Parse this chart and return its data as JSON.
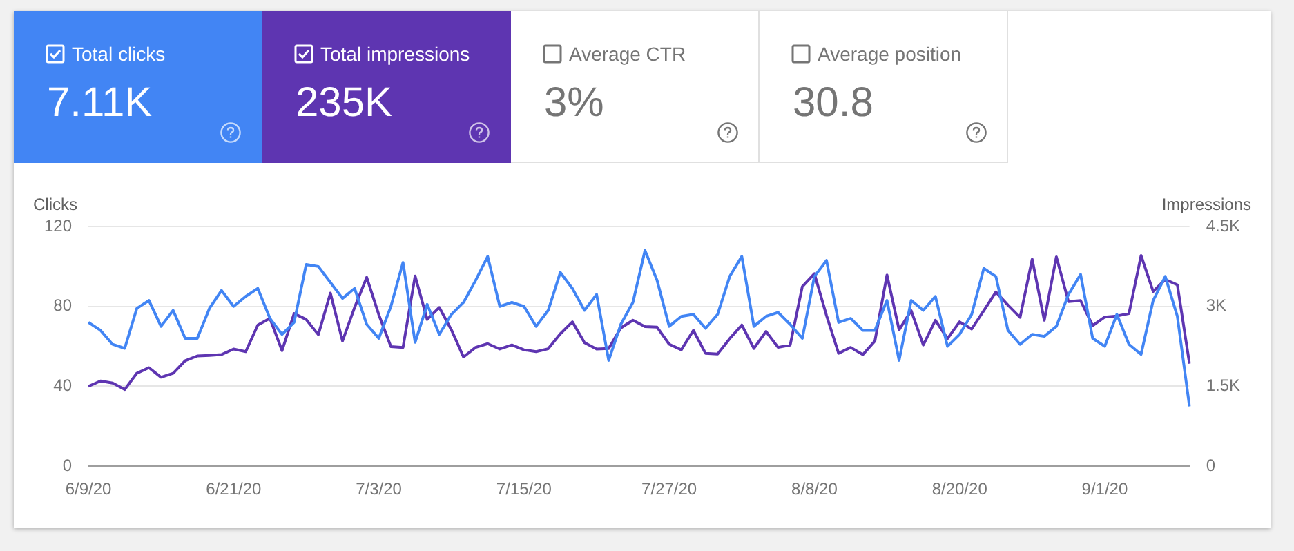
{
  "chart_data": [
    {
      "type": "other",
      "title": "Total clicks",
      "annotations": [
        "7.11K"
      ],
      "color": "#4285f4"
    },
    {
      "type": "other",
      "title": "Total impressions",
      "annotations": [
        "235K"
      ],
      "color": "#5e35b1"
    },
    {
      "type": "other",
      "title": "Average CTR",
      "annotations": [
        "3%"
      ]
    },
    {
      "type": "other",
      "title": "Average position",
      "annotations": [
        "30.8"
      ]
    },
    {
      "type": "line",
      "ylabel": "Clicks",
      "y2label": "Impressions",
      "categories": [
        "6/9/20",
        null,
        null,
        null,
        null,
        null,
        null,
        null,
        null,
        null,
        null,
        null,
        "6/21/20",
        null,
        null,
        null,
        null,
        null,
        null,
        null,
        null,
        null,
        null,
        null,
        "7/3/20",
        null,
        null,
        null,
        null,
        null,
        null,
        null,
        null,
        null,
        null,
        null,
        "7/15/20",
        null,
        null,
        null,
        null,
        null,
        null,
        null,
        null,
        null,
        null,
        null,
        "7/27/20",
        null,
        null,
        null,
        null,
        null,
        null,
        null,
        null,
        null,
        null,
        null,
        "8/8/20",
        null,
        null,
        null,
        null,
        null,
        null,
        null,
        null,
        null,
        null,
        null,
        "8/20/20",
        null,
        null,
        null,
        null,
        null,
        null,
        null,
        null,
        null,
        null,
        null,
        "9/1/20",
        null,
        null,
        null,
        null,
        null,
        null,
        null
      ],
      "series": [
        {
          "color": "#4285f4",
          "axis": "y",
          "values": [
            72,
            68,
            61,
            59,
            79,
            83,
            70,
            78,
            64,
            64,
            79,
            88,
            80,
            85,
            89,
            74,
            66,
            72,
            101,
            100,
            92,
            84,
            89,
            71,
            64,
            80,
            102,
            62,
            81,
            66,
            76,
            82,
            93,
            105,
            80,
            82,
            80,
            70,
            78,
            97,
            89,
            78,
            86,
            53,
            71,
            82,
            108,
            93,
            70,
            75,
            76,
            69,
            76,
            95,
            105,
            70,
            75,
            77,
            71,
            64,
            95,
            103,
            72,
            74,
            68,
            68,
            83,
            53,
            83,
            78,
            85,
            60,
            66,
            76,
            99,
            95,
            68,
            61,
            66,
            65,
            70,
            86,
            96,
            64,
            60,
            76,
            61,
            56,
            83,
            95,
            75,
            30
          ]
        },
        {
          "color": "#5e35b1",
          "axis": "y2",
          "values": [
            1500,
            1600,
            1560,
            1440,
            1745,
            1850,
            1670,
            1745,
            1980,
            2070,
            2080,
            2095,
            2200,
            2150,
            2650,
            2775,
            2170,
            2865,
            2755,
            2470,
            3250,
            2350,
            2980,
            3545,
            2845,
            2245,
            2230,
            3570,
            2755,
            2980,
            2560,
            2050,
            2230,
            2300,
            2200,
            2275,
            2185,
            2150,
            2205,
            2485,
            2710,
            2320,
            2200,
            2210,
            2595,
            2740,
            2620,
            2610,
            2290,
            2185,
            2550,
            2120,
            2105,
            2395,
            2650,
            2210,
            2530,
            2230,
            2275,
            3370,
            3615,
            2830,
            2120,
            2230,
            2095,
            2350,
            3590,
            2560,
            2920,
            2275,
            2740,
            2395,
            2710,
            2575,
            2920,
            3270,
            3025,
            2795,
            3885,
            2740,
            3930,
            3090,
            3110,
            2640,
            2800,
            2820,
            2865,
            3955,
            3280,
            3505,
            3405,
            1925
          ]
        }
      ],
      "ylim": [
        0,
        120
      ],
      "yticks": [
        0,
        40,
        80,
        120
      ],
      "y2lim": [
        0,
        4500
      ],
      "y2ticks": [
        0,
        {
          "value": 1500,
          "label": "1.5K"
        },
        {
          "value": 3000,
          "label": "3K"
        },
        {
          "value": 4500,
          "label": "4.5K"
        }
      ],
      "grid": "y",
      "legend": false,
      "marker": "none",
      "line_style": "solid"
    }
  ]
}
